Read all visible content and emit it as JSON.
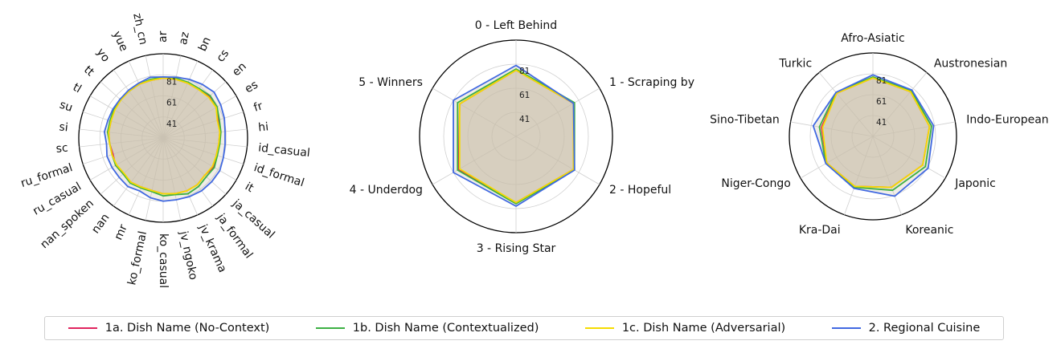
{
  "chart_data": [
    {
      "type": "radar",
      "ticks": [
        41,
        61,
        81
      ],
      "range": [
        21,
        101
      ],
      "axes": [
        "ar",
        "az",
        "bn",
        "cs",
        "en",
        "es",
        "fr",
        "hi",
        "id_casual",
        "id_formal",
        "it",
        "ja_casual",
        "ja_formal",
        "jv_krama",
        "jv_ngoko",
        "ko_casual",
        "ko_formal",
        "mr",
        "nan",
        "nan_spoken",
        "ru_casual",
        "ru_formal",
        "sc",
        "si",
        "su",
        "tl",
        "tt",
        "yo",
        "yue",
        "zh_cn"
      ],
      "series": [
        {
          "name": "1a. Dish Name (No-Context)",
          "color": "#e0245e",
          "values": [
            78,
            78,
            78,
            78,
            80,
            79,
            76,
            75,
            74,
            74,
            76,
            74,
            76,
            76,
            75,
            74,
            72,
            72,
            73,
            72,
            73,
            71,
            72,
            73,
            73,
            75,
            76,
            76,
            77,
            77
          ]
        },
        {
          "name": "1b. Dish Name (Contextualized)",
          "color": "#3cb043",
          "values": [
            79,
            79,
            79,
            79,
            81,
            80,
            77,
            76,
            75,
            75,
            77,
            76,
            78,
            79,
            76,
            76,
            73,
            73,
            74,
            72,
            73,
            72,
            72,
            74,
            74,
            75,
            76,
            76,
            77,
            78
          ]
        },
        {
          "name": "1c. Dish Name (Adversarial)",
          "color": "#f5dc00",
          "values": [
            78,
            78,
            78,
            78,
            79,
            79,
            75,
            75,
            74,
            74,
            75,
            74,
            76,
            76,
            75,
            74,
            72,
            72,
            73,
            71,
            72,
            72,
            72,
            73,
            73,
            74,
            75,
            76,
            77,
            77
          ]
        },
        {
          "name": "2. Regional Cuisine",
          "color": "#4169e1",
          "values": [
            79,
            80,
            82,
            84,
            86,
            84,
            82,
            80,
            80,
            81,
            83,
            83,
            83,
            82,
            81,
            81,
            79,
            76,
            78,
            77,
            77,
            77,
            75,
            77,
            76,
            76,
            76,
            77,
            78,
            80
          ]
        }
      ]
    },
    {
      "type": "radar",
      "ticks": [
        41,
        61,
        81
      ],
      "range": [
        21,
        101
      ],
      "axes": [
        "0 - Left Behind",
        "1 - Scraping by",
        "2 - Hopeful",
        "3 - Rising Star",
        "4 - Underdog",
        "5 - Winners"
      ],
      "series": [
        {
          "name": "1a. Dish Name (No-Context)",
          "color": "#e0245e",
          "values": [
            76,
            76,
            76,
            76,
            76,
            75
          ]
        },
        {
          "name": "1b. Dish Name (Contextualized)",
          "color": "#3cb043",
          "values": [
            77,
            77,
            77,
            77,
            77,
            77
          ]
        },
        {
          "name": "1c. Dish Name (Adversarial)",
          "color": "#f5dc00",
          "values": [
            76,
            76,
            76,
            76,
            75,
            75
          ]
        },
        {
          "name": "2. Regional Cuisine",
          "color": "#4169e1",
          "values": [
            80,
            76,
            77,
            79,
            81,
            81
          ]
        }
      ]
    },
    {
      "type": "radar",
      "ticks": [
        41,
        61,
        81
      ],
      "range": [
        21,
        101
      ],
      "axes": [
        "Afro-Asiatic",
        "Austronesian",
        "Indo-European",
        "Japonic",
        "Koreanic",
        "Kra-Dai",
        "Niger-Congo",
        "Sino-Tibetan",
        "Turkic"
      ],
      "series": [
        {
          "name": "1a. Dish Name (No-Context)",
          "color": "#e0245e",
          "values": [
            77,
            77,
            76,
            76,
            73,
            72,
            72,
            71,
            75
          ]
        },
        {
          "name": "1b. Dish Name (Contextualized)",
          "color": "#3cb043",
          "values": [
            78,
            78,
            78,
            79,
            76,
            73,
            73,
            73,
            76
          ]
        },
        {
          "name": "1c. Dish Name (Adversarial)",
          "color": "#f5dc00",
          "values": [
            77,
            77,
            76,
            76,
            73,
            72,
            72,
            70,
            75
          ]
        },
        {
          "name": "2. Regional Cuisine",
          "color": "#4169e1",
          "values": [
            80,
            79,
            80,
            82,
            82,
            74,
            73,
            79,
            76
          ]
        }
      ]
    }
  ],
  "legend": [
    {
      "label": "1a. Dish Name (No-Context)",
      "color": "#e0245e"
    },
    {
      "label": "1b. Dish Name (Contextualized)",
      "color": "#3cb043"
    },
    {
      "label": "1c. Dish Name (Adversarial)",
      "color": "#f5dc00"
    },
    {
      "label": "2. Regional Cuisine",
      "color": "#4169e1"
    }
  ],
  "fill_color": "#c8c0a8"
}
